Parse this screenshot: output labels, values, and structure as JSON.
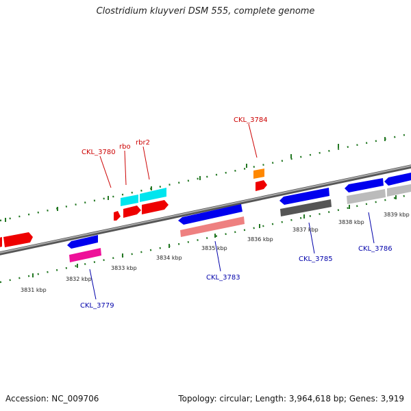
{
  "title": "Clostridium kluyveri DSM 555, complete genome",
  "accession": "Accession: NC_009706",
  "stats": "Topology: circular; Length: 3,964,618 bp; Genes: 3,919",
  "colors": {
    "forward_label": "#cc0000",
    "reverse_label": "#0000aa",
    "backbone": "#888888",
    "tick": "#227722"
  },
  "scale_labels": [
    "3831 kbp",
    "3832 kbp",
    "3833 kbp",
    "3834 kbp",
    "3835 kbp",
    "3836 kbp",
    "3837 kbp",
    "3838 kbp",
    "3839 kbp"
  ],
  "forward_labels": [
    "CKL_3780",
    "rbo",
    "rbr2",
    "CKL_3784"
  ],
  "reverse_labels": [
    "CKL_3779",
    "CKL_3783",
    "CKL_3785",
    "CKL_3786"
  ]
}
